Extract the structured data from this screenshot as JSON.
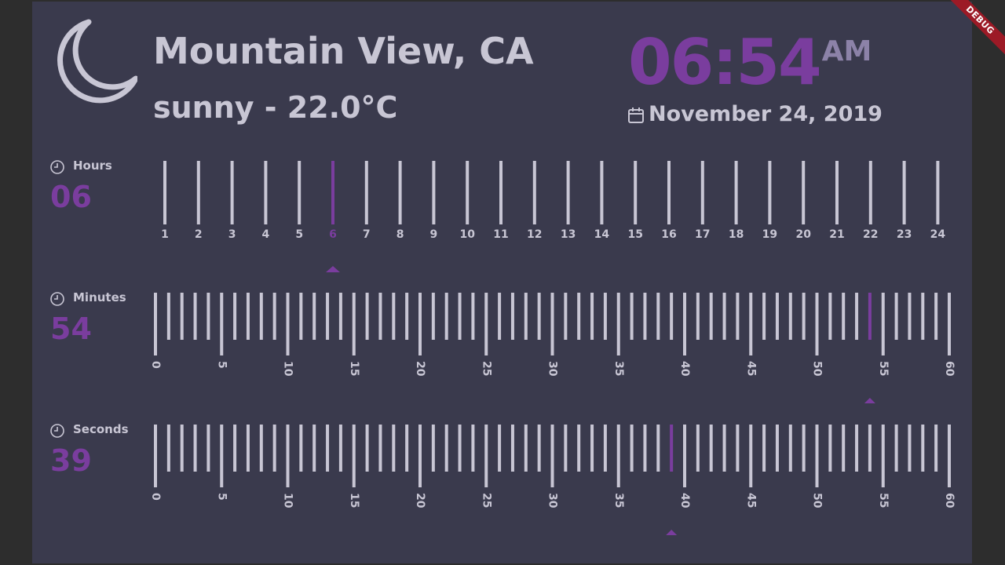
{
  "weather": {
    "location": "Mountain View, CA",
    "condition": "sunny - 22.0°C",
    "icon": "moon-icon"
  },
  "clock": {
    "time": "06:54",
    "ampm": "AM",
    "date": "November 24, 2019"
  },
  "hours": {
    "label": "Hours",
    "value": "06",
    "current": 6,
    "tick_labels": [
      "1",
      "2",
      "3",
      "4",
      "5",
      "6",
      "7",
      "8",
      "9",
      "10",
      "11",
      "12",
      "13",
      "14",
      "15",
      "16",
      "17",
      "18",
      "19",
      "20",
      "21",
      "22",
      "23",
      "24"
    ]
  },
  "minutes": {
    "label": "Minutes",
    "value": "54",
    "current": 54,
    "tick_labels": [
      "0",
      "5",
      "10",
      "15",
      "20",
      "25",
      "30",
      "35",
      "40",
      "45",
      "50",
      "55",
      "60"
    ]
  },
  "seconds": {
    "label": "Seconds",
    "value": "39",
    "current": 39,
    "tick_labels": [
      "0",
      "5",
      "10",
      "15",
      "20",
      "25",
      "30",
      "35",
      "40",
      "45",
      "50",
      "55",
      "60"
    ]
  },
  "debug_banner": "DEBUG",
  "colors": {
    "background": "#3a3a4d",
    "frame": "#2d2d2d",
    "accent": "#7a3d9e",
    "tick": "#c8c6d4",
    "muted": "#8c82a8",
    "banner": "#9c1a26"
  }
}
